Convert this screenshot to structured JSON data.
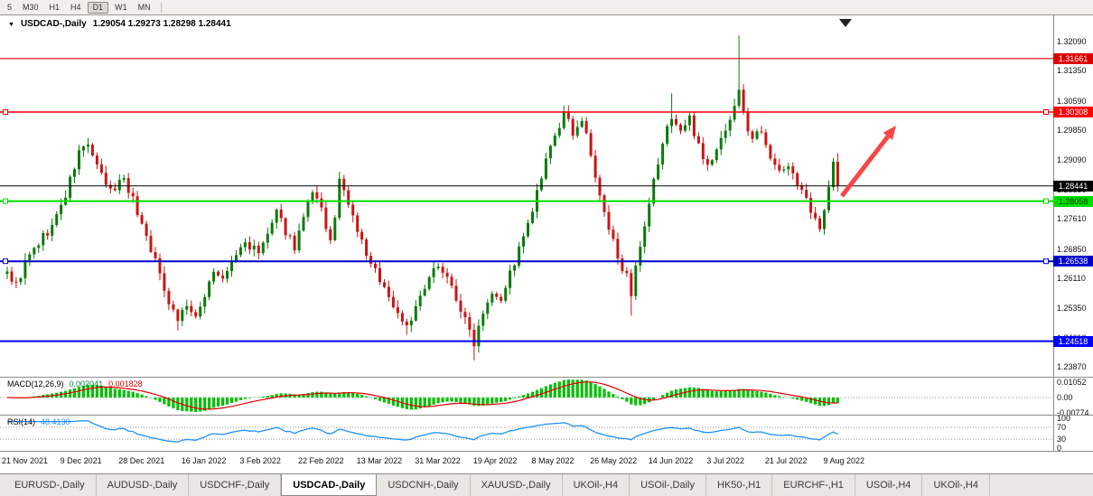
{
  "toolbar": {
    "timeframes": [
      "5",
      "M30",
      "H1",
      "H4",
      "D1",
      "W1",
      "MN"
    ],
    "active": "D1"
  },
  "chart": {
    "dropdown_icon": "▼",
    "title": "USDCAD-,Daily",
    "ohlc": "1.29054 1.29273 1.28298 1.28441",
    "price_axis": [
      "1.32090",
      "1.31350",
      "1.30590",
      "1.29850",
      "1.29090",
      "1.28350",
      "1.27610",
      "1.26850",
      "1.26110",
      "1.25350",
      "1.24610",
      "1.23870"
    ],
    "date_axis": [
      "21 Nov 2021",
      "9 Dec 2021",
      "28 Dec 2021",
      "16 Jan 2022",
      "3 Feb 2022",
      "22 Feb 2022",
      "13 Mar 2022",
      "31 Mar 2022",
      "19 Apr 2022",
      "8 May 2022",
      "26 May 2022",
      "14 Jun 2022",
      "3 Jul 2022",
      "21 Jul 2022",
      "9 Aug 2022"
    ],
    "levels": [
      {
        "price": 1.31661,
        "label": "1.31661",
        "color": "#dd0000",
        "text_color": "#ffffff",
        "width": 1.2,
        "handles": false
      },
      {
        "price": 1.30308,
        "label": "1.30308",
        "color": "#ff0000",
        "text_color": "#ffffff",
        "width": 1.5,
        "handles": true
      },
      {
        "price": 1.28441,
        "label": "1.28441",
        "color": "#000000",
        "text_color": "#ffffff",
        "width": 1,
        "handles": false
      },
      {
        "price": 1.28058,
        "label": "1.28058",
        "color": "#00dd00",
        "text_color": "#003300",
        "width": 2,
        "handles": true
      },
      {
        "price": 1.26538,
        "label": "1.26538",
        "color": "#0000cc",
        "text_color": "#ffffff",
        "width": 2,
        "handles": true
      },
      {
        "price": 1.24518,
        "label": "1.24518",
        "color": "#0000ff",
        "text_color": "#ffffff",
        "width": 2,
        "handles": false
      }
    ],
    "colors": {
      "bull": "#0b7a0b",
      "bear": "#c91414",
      "macd_hist": "#00c000",
      "macd_signal": "#e00000",
      "rsi_line": "#1e90ff",
      "arrow": "#f94545"
    }
  },
  "macd_panel": {
    "label": "MACD(12,26,9)",
    "value_main": "0.002041",
    "value_signal": "0.001828",
    "axis": [
      "0.01052",
      "0.00",
      "-0.00774"
    ]
  },
  "rsi_panel": {
    "label": "RSI(14)",
    "value": "48.4130",
    "axis": [
      "100",
      "70",
      "30",
      "0"
    ]
  },
  "tabs": {
    "items": [
      "EURUSD-,Daily",
      "AUDUSD-,Daily",
      "USDCHF-,Daily",
      "USDCAD-,Daily",
      "USDCNH-,Daily",
      "XAUUSD-,Daily",
      "UKOil-,H4",
      "USOil-,Daily",
      "HK50-,H1",
      "EURCHF-,H1",
      "USOil-,H4",
      "UKOil-,H4"
    ],
    "active_index": 3
  },
  "chart_data": {
    "type": "candlestick",
    "symbol": "USDCAD",
    "timeframe": "Daily",
    "ylim": [
      1.2387,
      1.3209
    ],
    "num_candles": 186,
    "last": {
      "open": 1.29054,
      "high": 1.29273,
      "low": 1.28298,
      "close": 1.28441
    },
    "rsi_current": 48.413,
    "macd_current": 0.002041,
    "macd_signal_current": 0.001828,
    "waypoints": [
      [
        0,
        1.2628
      ],
      [
        2,
        1.2592
      ],
      [
        4,
        1.2648
      ],
      [
        7,
        1.27
      ],
      [
        10,
        1.2742
      ],
      [
        13,
        1.282
      ],
      [
        16,
        1.2928
      ],
      [
        18,
        1.2952
      ],
      [
        20,
        1.2888
      ],
      [
        23,
        1.2828
      ],
      [
        26,
        1.2868
      ],
      [
        28,
        1.2808
      ],
      [
        30,
        1.2748
      ],
      [
        32,
        1.2688
      ],
      [
        34,
        1.2618
      ],
      [
        36,
        1.2556
      ],
      [
        38,
        1.2508
      ],
      [
        40,
        1.2546
      ],
      [
        42,
        1.2502
      ],
      [
        44,
        1.2572
      ],
      [
        46,
        1.2632
      ],
      [
        48,
        1.2602
      ],
      [
        50,
        1.2652
      ],
      [
        53,
        1.2702
      ],
      [
        56,
        1.2672
      ],
      [
        58,
        1.2722
      ],
      [
        60,
        1.2772
      ],
      [
        62,
        1.2732
      ],
      [
        64,
        1.2692
      ],
      [
        66,
        1.2762
      ],
      [
        68,
        1.2822
      ],
      [
        70,
        1.2782
      ],
      [
        72,
        1.2702
      ],
      [
        73,
        1.2752
      ],
      [
        74,
        1.2872
      ],
      [
        75,
        1.2822
      ],
      [
        77,
        1.2762
      ],
      [
        79,
        1.2702
      ],
      [
        81,
        1.2642
      ],
      [
        83,
        1.2612
      ],
      [
        85,
        1.2562
      ],
      [
        87,
        1.2522
      ],
      [
        89,
        1.2492
      ],
      [
        91,
        1.2532
      ],
      [
        92,
        1.2562
      ],
      [
        94,
        1.2602
      ],
      [
        96,
        1.2652
      ],
      [
        98,
        1.2612
      ],
      [
        100,
        1.2562
      ],
      [
        102,
        1.2502
      ],
      [
        104,
        1.2452
      ],
      [
        106,
        1.2532
      ],
      [
        108,
        1.2582
      ],
      [
        110,
        1.2562
      ],
      [
        112,
        1.2622
      ],
      [
        114,
        1.2682
      ],
      [
        116,
        1.2742
      ],
      [
        118,
        1.2822
      ],
      [
        120,
        1.2902
      ],
      [
        122,
        1.2972
      ],
      [
        124,
        1.3022
      ],
      [
        126,
        1.2982
      ],
      [
        128,
        1.3012
      ],
      [
        130,
        1.2922
      ],
      [
        132,
        1.2812
      ],
      [
        134,
        1.2732
      ],
      [
        136,
        1.2672
      ],
      [
        138,
        1.2612
      ],
      [
        139,
        1.2556
      ],
      [
        140,
        1.2632
      ],
      [
        142,
        1.2732
      ],
      [
        144,
        1.2852
      ],
      [
        146,
        1.2952
      ],
      [
        148,
        1.3022
      ],
      [
        150,
        1.2982
      ],
      [
        152,
        1.3012
      ],
      [
        154,
        1.2952
      ],
      [
        156,
        1.2892
      ],
      [
        158,
        1.2932
      ],
      [
        160,
        1.2992
      ],
      [
        162,
        1.3042
      ],
      [
        163,
        1.3092
      ],
      [
        164,
        1.3022
      ],
      [
        166,
        1.2962
      ],
      [
        168,
        1.2992
      ],
      [
        170,
        1.2922
      ],
      [
        172,
        1.2872
      ],
      [
        174,
        1.2902
      ],
      [
        176,
        1.2852
      ],
      [
        178,
        1.2802
      ],
      [
        180,
        1.2752
      ],
      [
        181,
        1.2732
      ],
      [
        182,
        1.2792
      ],
      [
        183,
        1.2852
      ],
      [
        184,
        1.2905
      ],
      [
        185,
        1.28441
      ]
    ],
    "wick_overrides": [
      [
        18,
        "high",
        1.2965
      ],
      [
        38,
        "low",
        1.2478
      ],
      [
        89,
        "low",
        1.2468
      ],
      [
        104,
        "low",
        1.2403
      ],
      [
        139,
        "low",
        1.2516
      ],
      [
        148,
        "high",
        1.3078
      ],
      [
        163,
        "high",
        1.3224
      ],
      [
        181,
        "low",
        1.2728
      ]
    ]
  }
}
